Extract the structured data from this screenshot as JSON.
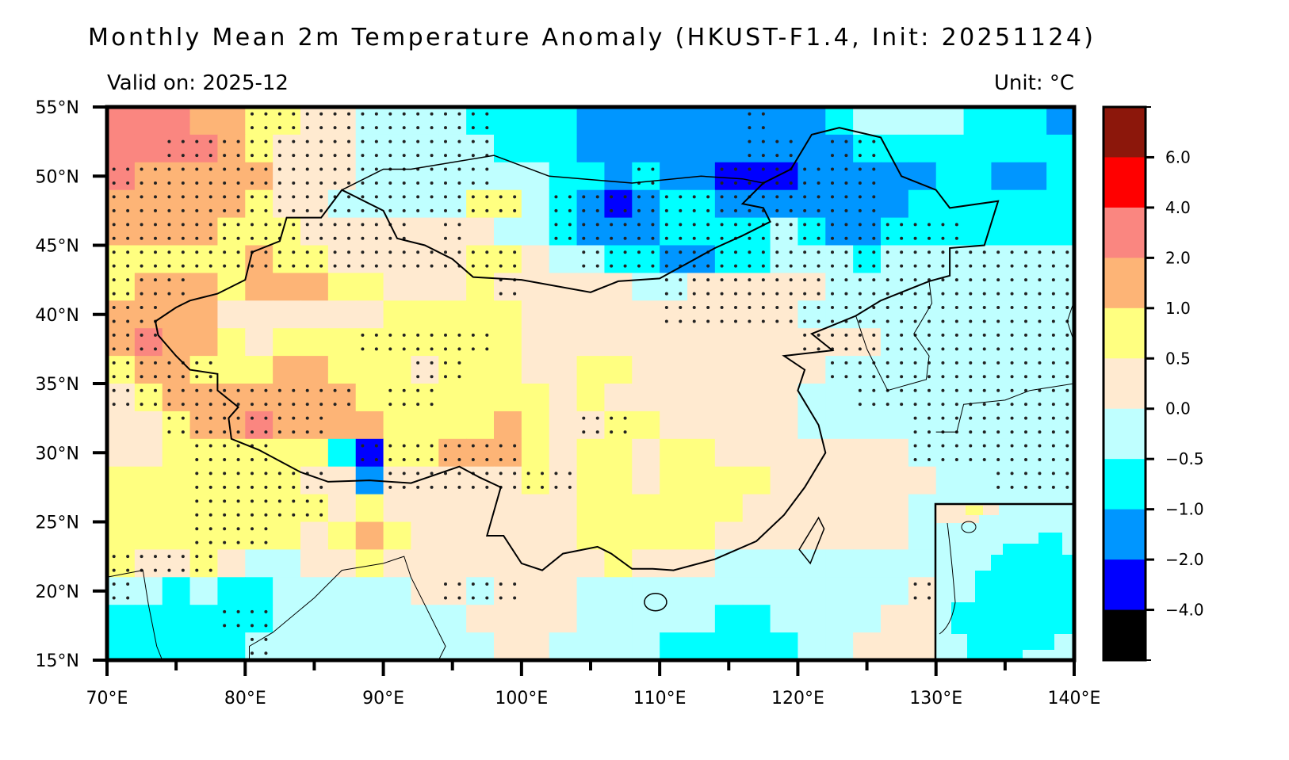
{
  "header": {
    "title": "Monthly Mean 2m Temperature Anomaly (HKUST-F1.4, Init: 20251124)",
    "valid_on": "Valid on: 2025-12",
    "unit": "Unit: °C"
  },
  "chart_data": {
    "type": "heatmap",
    "title": "Monthly Mean 2m Temperature Anomaly (HKUST-F1.4, Init: 20251124)",
    "subtitle_left": "Valid on: 2025-12",
    "subtitle_right": "Unit: °C",
    "xlim": [
      70,
      140
    ],
    "ylim": [
      15,
      55
    ],
    "x_ticks": [
      70,
      80,
      90,
      100,
      110,
      120,
      130,
      140
    ],
    "x_tick_labels": [
      "70°E",
      "80°E",
      "90°E",
      "100°E",
      "110°E",
      "120°E",
      "130°E",
      "140°E"
    ],
    "y_ticks": [
      55,
      50,
      45,
      40,
      35,
      30,
      25,
      20,
      15
    ],
    "y_tick_labels": [
      "55°N",
      "50°N",
      "45°N",
      "40°N",
      "35°N",
      "30°N",
      "25°N",
      "20°N",
      "15°N"
    ],
    "colorbar": {
      "tick_labels": [
        "6.0",
        "4.0",
        "2.0",
        "1.0",
        "0.5",
        "0.0",
        "−0.5",
        "−1.0",
        "−2.0",
        "−4.0"
      ],
      "bins_top_to_bottom": [
        {
          "range": ">6",
          "color": "#8c170b"
        },
        {
          "range": "4 to 6",
          "color": "#ff0000"
        },
        {
          "range": "2 to 4",
          "color": "#fa8680"
        },
        {
          "range": "1 to 2",
          "color": "#fdb476"
        },
        {
          "range": "0.5 to 1",
          "color": "#ffff80"
        },
        {
          "range": "0 to 0.5",
          "color": "#ffead0"
        },
        {
          "range": "-0.5 to 0",
          "color": "#bfffff"
        },
        {
          "range": "-1 to -0.5",
          "color": "#00ffff"
        },
        {
          "range": "-2 to -1",
          "color": "#0096ff"
        },
        {
          "range": "-4 to -2",
          "color": "#0000ff"
        },
        {
          "range": "<-4",
          "color": "#000000"
        }
      ]
    },
    "grid_resolution_deg": 2,
    "grid_codes": {
      "A": "#0000ff",
      "B": "#0096ff",
      "C": "#00ffff",
      "D": "#bfffff",
      "E": "#ffead0",
      "F": "#ffff80",
      "G": "#fdb476",
      "H": "#fa8680"
    },
    "grid_rows_north_to_south": [
      "HHHGGFFEEDDDDCCCCBBBBBBBBBCDDDDCCCB",
      "HHHHGFEEEDDDDDCCCBBBBBBBBBBCCCCCCCC",
      "HGGGGGEEEDDDDDDDCCBCBBAAABBBBBCCBBC",
      "GGGGGFEEDDDDDFFDCBABCCBBBBBBBCCCCCC",
      "GGGGFFFEEEEEEEDDCBBBCCCCDCBBCCCCCCC",
      "FFFFFGFFEEEEEFFEDDCCBBCCDDDCDDDDDDD",
      "FGGGFGGGFFEEEFEEEEEDDEEEEEDDDDDDDDD",
      "GGGGEEEEEEFFFFFEEEEEEEEEEDDDDDDDDDD",
      "GHGGFEFFFFFFFFFEEEEEEEEEEEEEDDDDDDD",
      "FGGFFFGGFFFEFFFEEFFEEEEEEEDDDDDDDDD",
      "EFGGGGGGGFFFFFFFEFEEEEEEEDDDDDDDDDD",
      "EEFGGHGGGGFFFFGFEEFFEEEEEDDDDDDDDDD",
      "EEFFFFFFCAFFGGGFEFFEFFEEEEEEEDDDDDD",
      "FFFFFFFEEBEEEEEFEFFEFFFFEEEEEEDDDDD",
      "FFFFFFFFEFEEEEEEEFFFFFFEEEEEEDDDDDD",
      "FFFFFFFEFGFEEEEEEFFFFFEEEEEEEDDDDDD",
      "FEEFEDDEEFEEEEEEEEFEEEDDDDDDDDDDDDD",
      "DDCDCCDDDDDEEDEEEDDDDDDDDDDDDECCCCC",
      "CCCCCCDDDDDDDEEEEDDDDDCCDDDDEECCCCC",
      "CCCCCDDDDDDDDDEEDDDDCCCCCDDEEECCCCC"
    ],
    "stippled_col_ranges_per_row": [
      [
        [
          5,
          13
        ],
        [
          23,
          23
        ]
      ],
      [
        [
          2,
          13
        ],
        [
          23,
          24
        ],
        [
          26,
          27
        ]
      ],
      [
        [
          0,
          13
        ],
        [
          19,
          19
        ],
        [
          22,
          27
        ]
      ],
      [
        [
          0,
          14
        ],
        [
          16,
          27
        ]
      ],
      [
        [
          0,
          10
        ],
        [
          12,
          12
        ],
        [
          16,
          30
        ]
      ],
      [
        [
          0,
          14
        ],
        [
          17,
          34
        ]
      ],
      [
        [
          0,
          2
        ],
        [
          14,
          14
        ],
        [
          20,
          34
        ]
      ],
      [
        [
          0,
          1
        ],
        [
          20,
          34
        ]
      ],
      [
        [
          0,
          1
        ],
        [
          9,
          13
        ],
        [
          25,
          34
        ]
      ],
      [
        [
          0,
          3
        ],
        [
          11,
          12
        ],
        [
          26,
          34
        ]
      ],
      [
        [
          0,
          8
        ],
        [
          10,
          11
        ],
        [
          27,
          34
        ]
      ],
      [
        [
          2,
          7
        ],
        [
          17,
          18
        ],
        [
          29,
          34
        ]
      ],
      [
        [
          3,
          5
        ],
        [
          9,
          14
        ],
        [
          29,
          34
        ]
      ],
      [
        [
          3,
          7
        ],
        [
          10,
          16
        ],
        [
          32,
          34
        ]
      ],
      [
        [
          3,
          7
        ]
      ],
      [
        [
          3,
          5
        ]
      ],
      [
        [
          0,
          3
        ]
      ],
      [
        [
          0,
          0
        ],
        [
          12,
          14
        ],
        [
          29,
          29
        ]
      ],
      [
        [
          4,
          5
        ]
      ],
      [
        [
          5,
          5
        ]
      ]
    ]
  }
}
